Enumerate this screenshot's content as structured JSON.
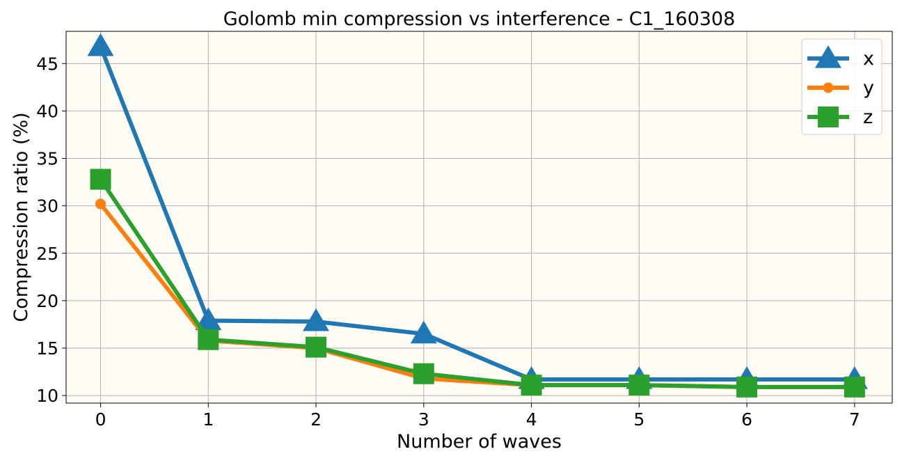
{
  "chart_data": {
    "type": "line",
    "title": "Golomb min compression vs interference - C1_160308",
    "xlabel": "Number of waves",
    "ylabel": "Compression ratio (%)",
    "x": [
      0,
      1,
      2,
      3,
      4,
      5,
      6,
      7
    ],
    "xlim": [
      -0.32,
      7.35
    ],
    "ylim": [
      9.2,
      48.4
    ],
    "xticks": [
      0,
      1,
      2,
      3,
      4,
      5,
      6,
      7
    ],
    "yticks": [
      10,
      15,
      20,
      25,
      30,
      35,
      40,
      45
    ],
    "grid": true,
    "legend_position": "top-right",
    "background": "#fffcf5",
    "series": [
      {
        "name": "x",
        "color": "#1f77b4",
        "marker": "triangle",
        "values": [
          46.8,
          17.9,
          17.8,
          16.5,
          11.7,
          11.7,
          11.7,
          11.7
        ]
      },
      {
        "name": "y",
        "color": "#ff7f0e",
        "marker": "circle",
        "values": [
          30.2,
          15.8,
          15.0,
          11.8,
          11.1,
          11.1,
          10.9,
          10.9
        ]
      },
      {
        "name": "z",
        "color": "#2ca02c",
        "marker": "square",
        "values": [
          32.8,
          15.9,
          15.1,
          12.3,
          11.1,
          11.1,
          10.9,
          10.9
        ]
      }
    ]
  }
}
